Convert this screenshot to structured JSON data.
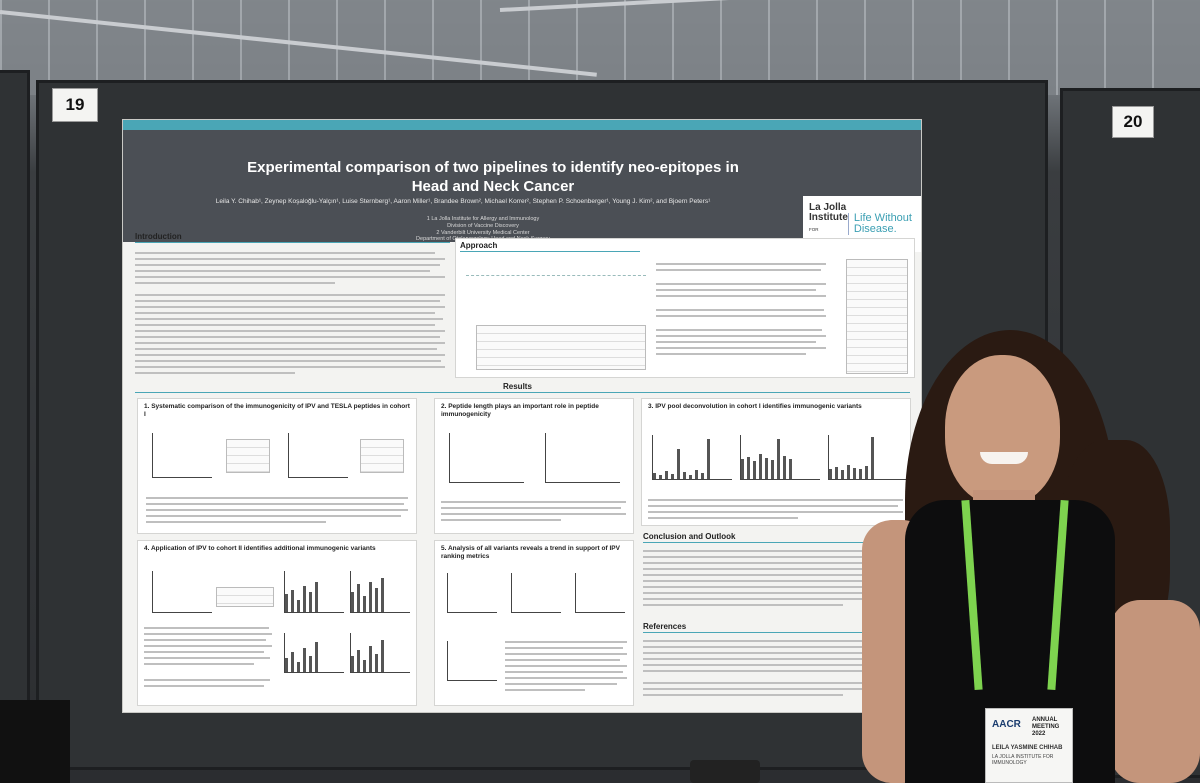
{
  "boards": {
    "left_number": "19",
    "right_number": "20"
  },
  "poster": {
    "title_line1": "Experimental comparison of two pipelines to identify neo-epitopes in",
    "title_line2": "Head and Neck Cancer",
    "authors": "Leila Y. Chihab¹, Zeynep Koşaloğlu-Yalçın¹, Luise Sternberg¹, Aaron Miller¹, Brandee Brown², Michael Korrer², Stephen P. Schoenberger¹, Young J. Kim², and Bjoern Peters¹",
    "affiliations": "1 La Jolla Institute for Allergy and Immunology\nDivision of Vaccine Discovery\n2 Vanderbilt University Medical Center\nDepartment of Otolaryngology-Head and Neck Surgery",
    "logo_institute": "La Jolla Institute",
    "logo_sub": "FOR IMMUNOLOGY",
    "logo_tagline": "Life Without Disease.",
    "sections": {
      "introduction": "Introduction",
      "approach": "Approach",
      "results": "Results",
      "conclusion": "Conclusion and Outlook",
      "references": "References"
    },
    "panels": {
      "p1": "1.  Systematic comparison of the immunogenicity of IPV and TESLA peptides in cohort I",
      "p2": "2.  Peptide length plays an important role in peptide immunogenicity",
      "p3": "3.  IPV pool deconvolution in cohort I identifies immunogenic variants",
      "p4": "4.  Application of IPV to cohort II identifies additional immunogenic variants",
      "p5": "5.  Analysis of all variants reveals a trend in support of  IPV ranking metrics"
    }
  },
  "badge": {
    "org": "AACR",
    "meeting": "ANNUAL MEETING 2022",
    "name": "LEILA YASMINE CHIHAB",
    "affiliation": "LA JOLLA INSTITUTE FOR IMMUNOLOGY"
  },
  "colors": {
    "accent": "#4aa6b6",
    "poster_header": "#4b4f55",
    "lanyard": "#7ed34f"
  }
}
